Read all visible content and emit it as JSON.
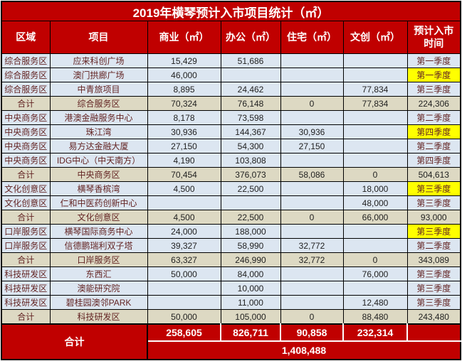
{
  "title": "2019年横琴预计入市项目统计（㎡）",
  "columns": [
    "区域",
    "项目",
    "商业（㎡）",
    "办公（㎡）",
    "住宅（㎡）",
    "文创（㎡）",
    "预计入市\n时间"
  ],
  "rows": [
    {
      "region": "综合服务区",
      "project": "应来科创广场",
      "commercial": "15,429",
      "office": "51,686",
      "residential": "",
      "cultural": "",
      "time": "第一季度",
      "subtotal": false,
      "highlight": false
    },
    {
      "region": "综合服务区",
      "project": "澳门拱廊广场",
      "commercial": "46,000",
      "office": "",
      "residential": "",
      "cultural": "",
      "time": "第一季度",
      "subtotal": false,
      "highlight": true
    },
    {
      "region": "综合服务区",
      "project": "中青旅项目",
      "commercial": "8,895",
      "office": "24,462",
      "residential": "",
      "cultural": "77,834",
      "time": "第三季度",
      "subtotal": false,
      "highlight": false
    },
    {
      "region": "合计",
      "project": "综合服务区",
      "commercial": "70,324",
      "office": "76,148",
      "residential": "0",
      "cultural": "77,834",
      "time": "224,306",
      "subtotal": true,
      "highlight": false
    },
    {
      "region": "中央商务区",
      "project": "港澳金融服务中心",
      "commercial": "8,178",
      "office": "73,598",
      "residential": "",
      "cultural": "",
      "time": "第二季度",
      "subtotal": false,
      "highlight": false
    },
    {
      "region": "中央商务区",
      "project": "珠江湾",
      "commercial": "30,936",
      "office": "144,367",
      "residential": "30,936",
      "cultural": "",
      "time": "第四季度",
      "subtotal": false,
      "highlight": true
    },
    {
      "region": "中央商务区",
      "project": "易方达金融大厦",
      "commercial": "27,150",
      "office": "54,300",
      "residential": "27,150",
      "cultural": "",
      "time": "第二季度",
      "subtotal": false,
      "highlight": false
    },
    {
      "region": "中央商务区",
      "project": "IDG中心（中天南方）",
      "commercial": "4,190",
      "office": "103,808",
      "residential": "",
      "cultural": "",
      "time": "第四季度",
      "subtotal": false,
      "highlight": false
    },
    {
      "region": "合计",
      "project": "中央商务区",
      "commercial": "70,454",
      "office": "376,073",
      "residential": "58,086",
      "cultural": "0",
      "time": "504,613",
      "subtotal": true,
      "highlight": false
    },
    {
      "region": "文化创意区",
      "project": "横琴香槟湾",
      "commercial": "4,500",
      "office": "22,500",
      "residential": "",
      "cultural": "18,000",
      "time": "第三季度",
      "subtotal": false,
      "highlight": true
    },
    {
      "region": "文化创意区",
      "project": "仁和中医药创新中心",
      "commercial": "",
      "office": "",
      "residential": "",
      "cultural": "48,000",
      "time": "第三季度",
      "subtotal": false,
      "highlight": false
    },
    {
      "region": "合计",
      "project": "文化创意区",
      "commercial": "4,500",
      "office": "22,500",
      "residential": "0",
      "cultural": "66,000",
      "time": "93,000",
      "subtotal": true,
      "highlight": false
    },
    {
      "region": "口岸服务区",
      "project": "横琴国际商务中心",
      "commercial": "24,000",
      "office": "188,000",
      "residential": "",
      "cultural": "",
      "time": "第三季度",
      "subtotal": false,
      "highlight": true
    },
    {
      "region": "口岸服务区",
      "project": "信德鹏瑞利双子塔",
      "commercial": "39,327",
      "office": "58,990",
      "residential": "32,772",
      "cultural": "",
      "time": "第二季度",
      "subtotal": false,
      "highlight": false
    },
    {
      "region": "合计",
      "project": "口岸服务区",
      "commercial": "63,327",
      "office": "246,990",
      "residential": "32,772",
      "cultural": "0",
      "time": "343,089",
      "subtotal": true,
      "highlight": false
    },
    {
      "region": "科技研发区",
      "project": "东西汇",
      "commercial": "50,000",
      "office": "84,000",
      "residential": "",
      "cultural": "76,000",
      "time": "第三季度",
      "subtotal": false,
      "highlight": false
    },
    {
      "region": "科技研发区",
      "project": "澳能研究院",
      "commercial": "",
      "office": "10,000",
      "residential": "",
      "cultural": "",
      "time": "第三季度",
      "subtotal": false,
      "highlight": false
    },
    {
      "region": "科技研发区",
      "project": "碧桂园澳邻PARK",
      "commercial": "",
      "office": "11,000",
      "residential": "",
      "cultural": "12,480",
      "time": "第三季度",
      "subtotal": false,
      "highlight": false
    },
    {
      "region": "合计",
      "project": "科技研发区",
      "commercial": "50,000",
      "office": "105,000",
      "residential": "0",
      "cultural": "88,480",
      "time": "243,480",
      "subtotal": true,
      "highlight": false
    }
  ],
  "grand_total": {
    "label": "合计",
    "commercial": "258,605",
    "office": "826,711",
    "residential": "90,858",
    "cultural": "232,314",
    "time": "",
    "total": "1,408,488"
  },
  "colors": {
    "red": "#c00000",
    "row_bg": "#dce6f1",
    "subtotal_bg": "#ddd9c3",
    "highlight_bg": "#ffff00",
    "dark_text": "#632423",
    "number_text": "#1f1f1f"
  }
}
